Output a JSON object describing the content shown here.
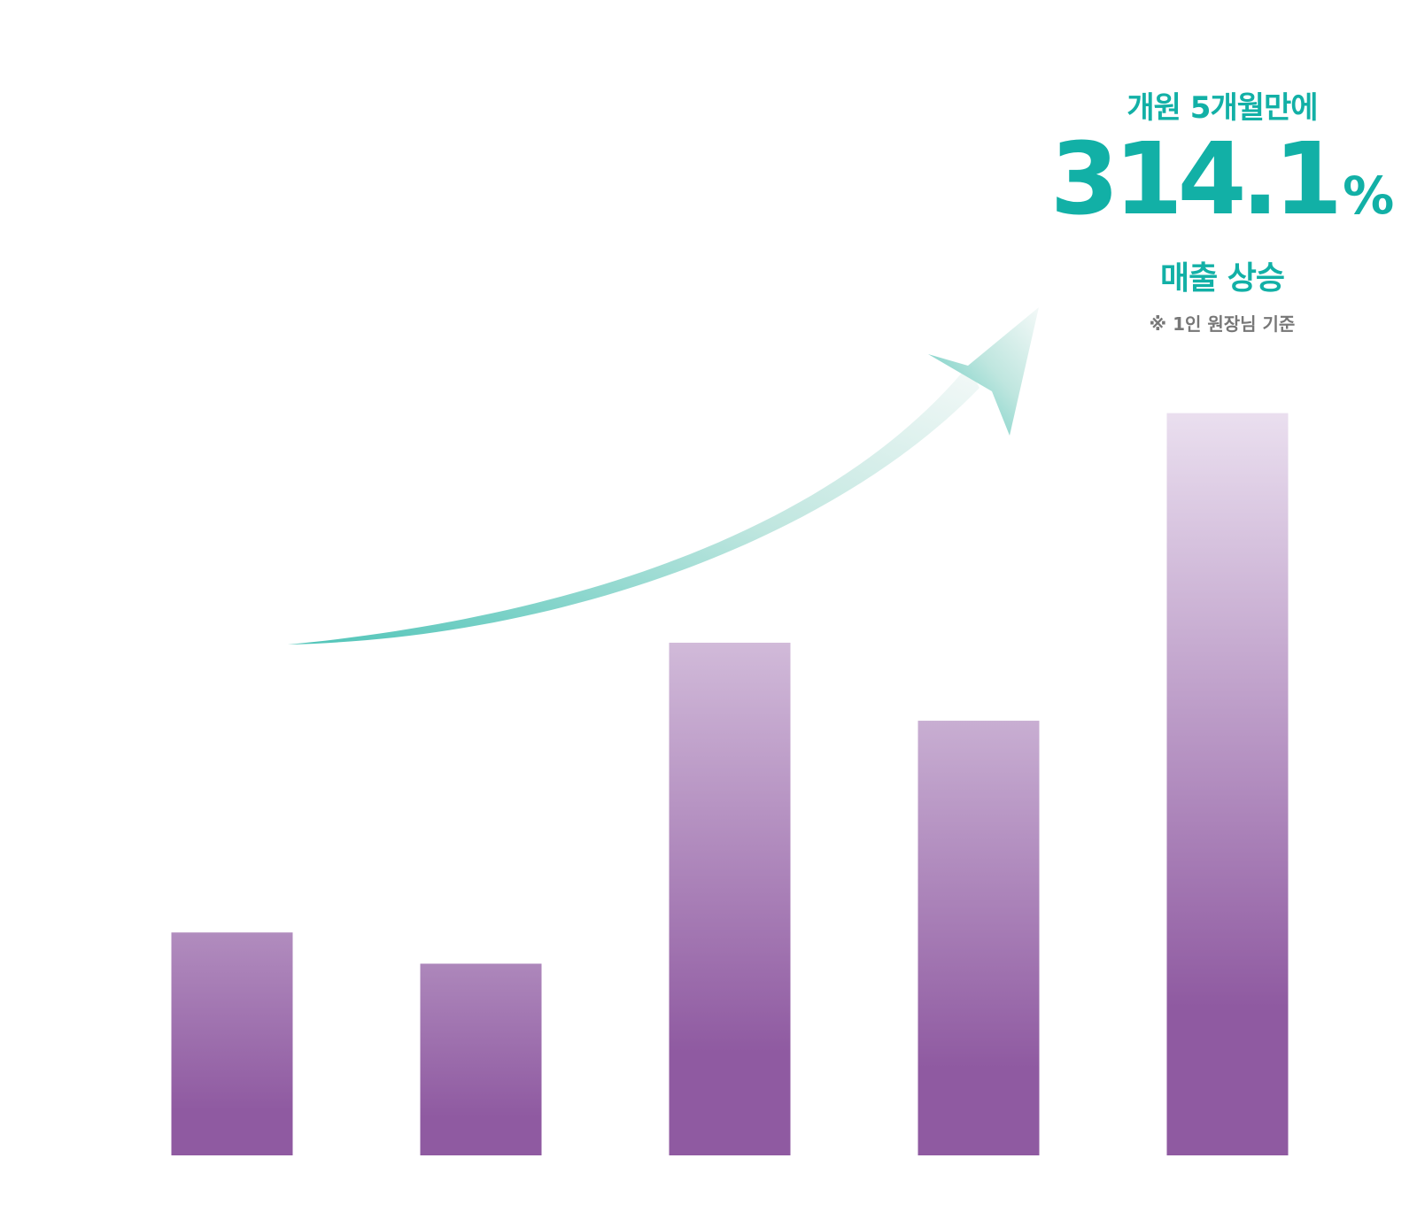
{
  "colors": {
    "accent": "#12b0a6",
    "bar_dark": "#8f5aa1",
    "bar_light": "#ece2f0",
    "note": "#777777"
  },
  "callout": {
    "line1": "개원 5개월만에",
    "number": "314.1",
    "unit": "%",
    "line3": "매출 상승",
    "note": "※ 1인 원장님 기준"
  },
  "chart_data": {
    "type": "bar",
    "title": "",
    "xlabel": "",
    "ylabel": "",
    "categories": [
      "",
      "",
      "",
      "",
      ""
    ],
    "values": [
      100,
      86,
      230,
      195,
      333
    ],
    "ylim": [
      0,
      340
    ],
    "grid": false,
    "trend_arrow": true
  }
}
